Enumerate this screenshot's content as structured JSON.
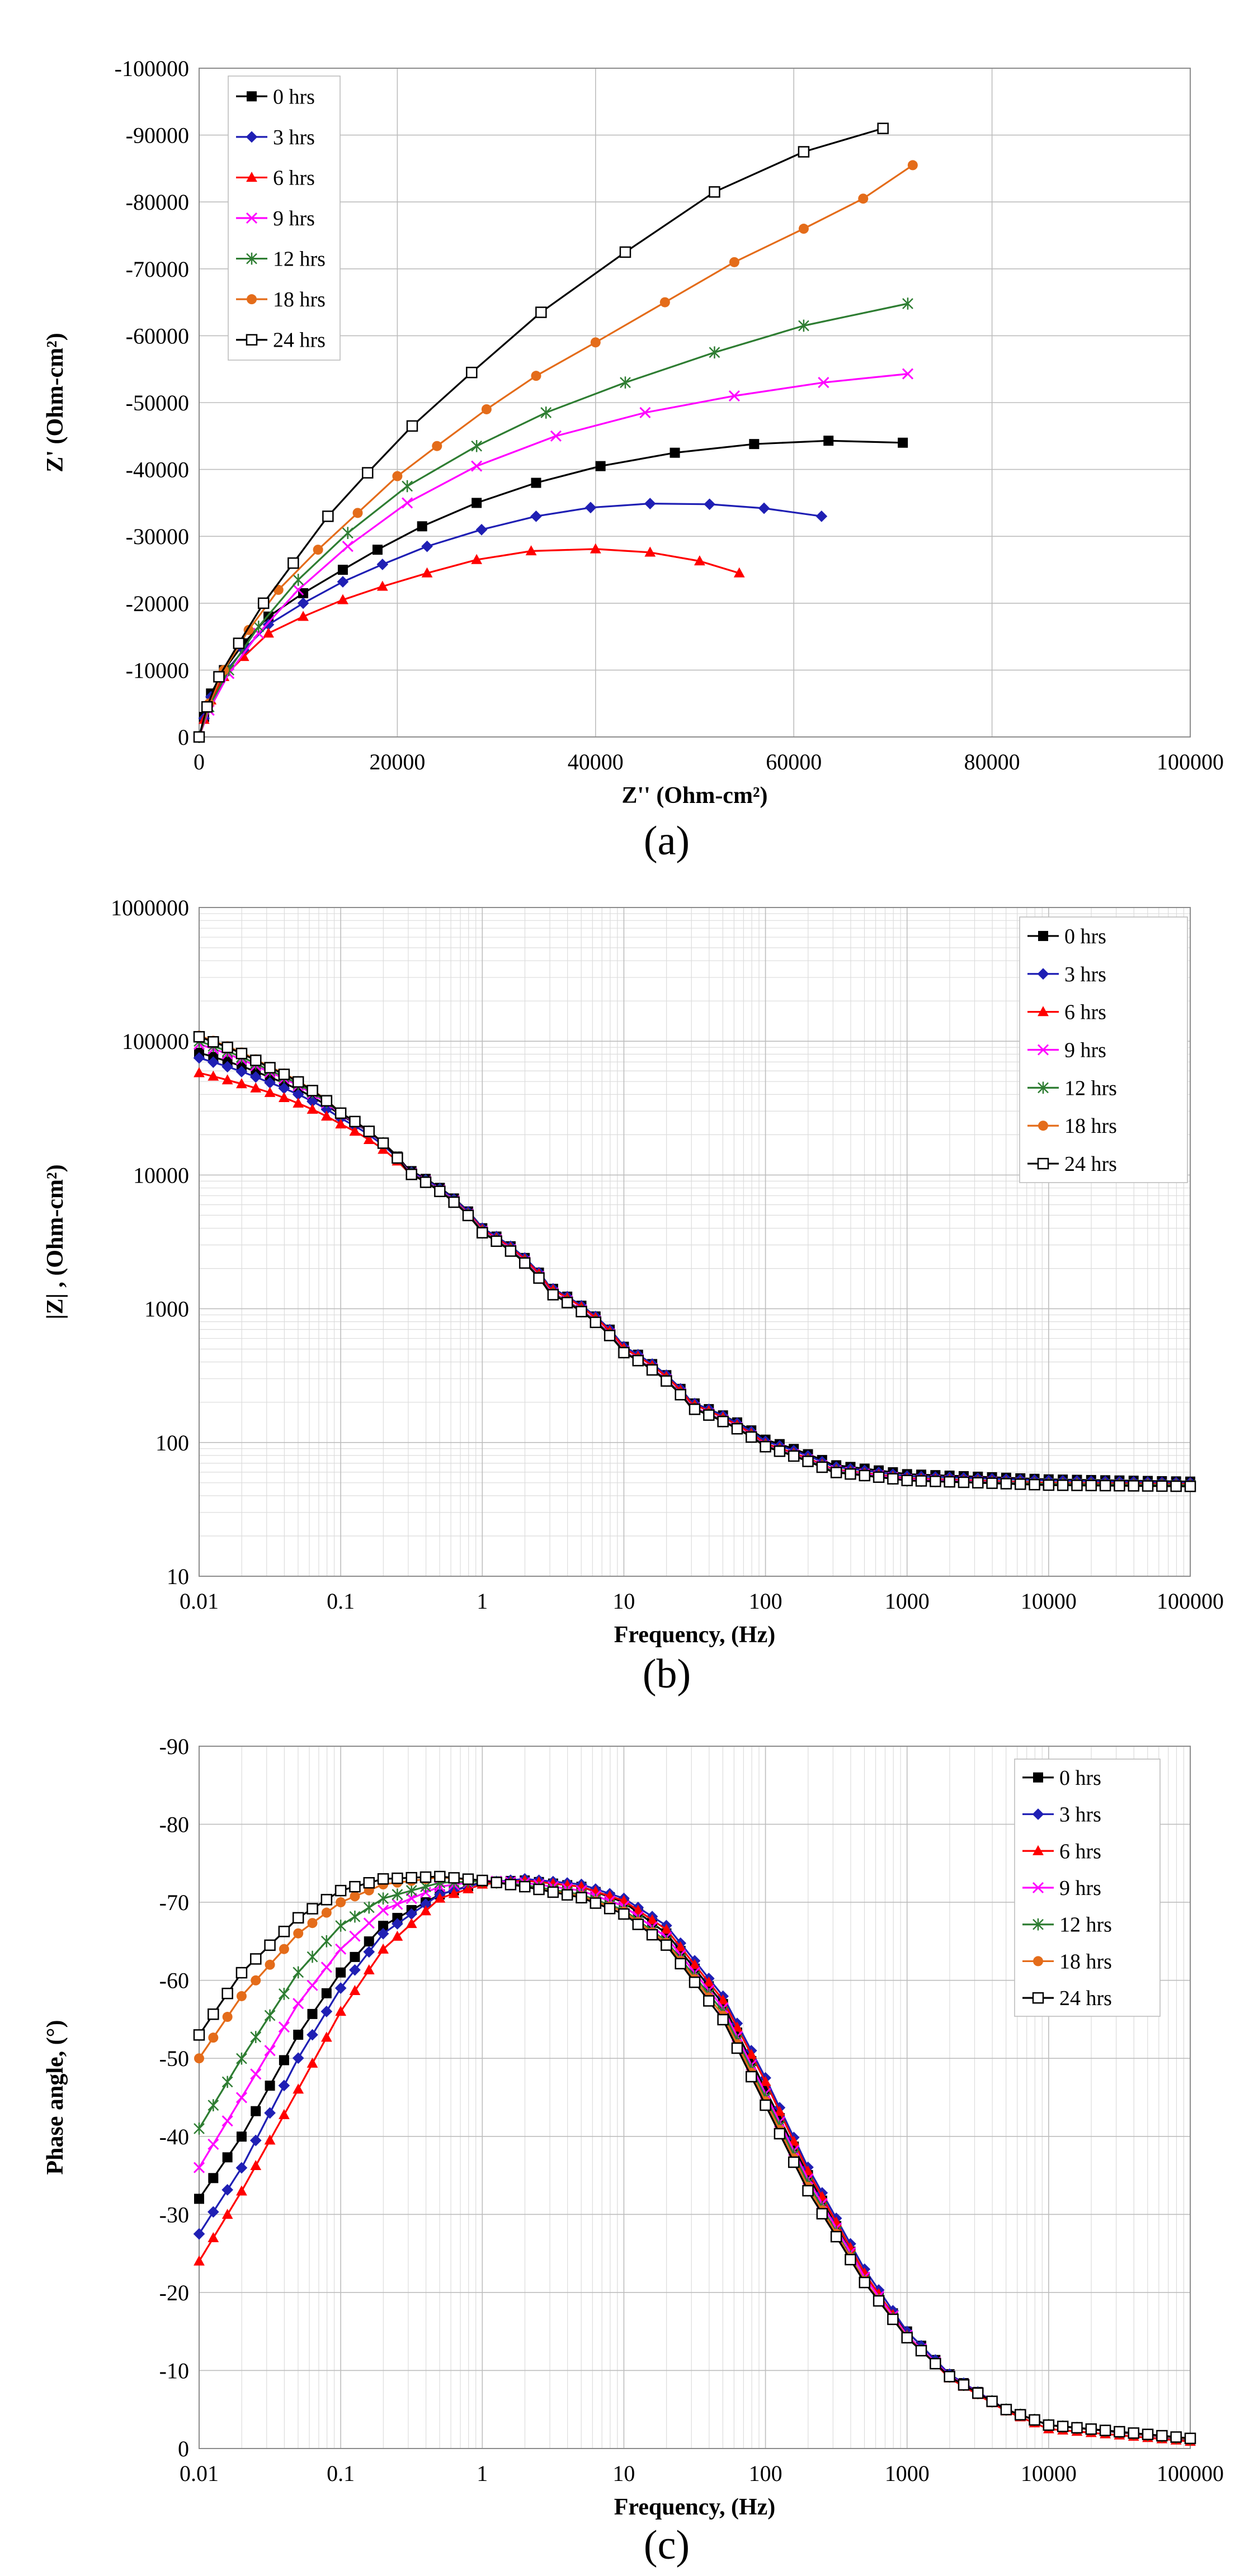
{
  "colors": {
    "0 hrs": "#000000",
    "3 hrs": "#1f1fb4",
    "6 hrs": "#ff0000",
    "9 hrs": "#ff00ff",
    "12 hrs": "#2e7d32",
    "18 hrs": "#e46c1a",
    "24 hrs": "#000000"
  },
  "markers": {
    "0 hrs": "square-filled",
    "3 hrs": "diamond",
    "6 hrs": "triangle",
    "9 hrs": "x-cross",
    "12 hrs": "star",
    "18 hrs": "circle",
    "24 hrs": "square-open"
  },
  "chart_data": [
    {
      "type": "scatter",
      "panel_label": "(a)",
      "title": "",
      "xlabel": "Z'' (Ohm-cm²)",
      "ylabel": "Z' (Ohm-cm²)",
      "xlim": [
        0,
        100000
      ],
      "ylim": [
        0,
        -100000
      ],
      "xticks": [
        "0",
        "20000",
        "40000",
        "60000",
        "80000",
        "100000"
      ],
      "yticks": [
        "0",
        "-10000",
        "-20000",
        "-30000",
        "-40000",
        "-50000",
        "-60000",
        "-70000",
        "-80000",
        "-90000",
        "-100000"
      ],
      "grid": true,
      "legend_position": "top-left",
      "series": [
        {
          "name": "0 hrs",
          "x": [
            0,
            500,
            1200,
            2500,
            4500,
            7000,
            10500,
            14500,
            18000,
            22500,
            28000,
            34000,
            40500,
            48000,
            56000,
            63500,
            71000
          ],
          "y": [
            0,
            -3000,
            -6500,
            -10000,
            -14000,
            -18000,
            -21500,
            -25000,
            -28000,
            -31500,
            -35000,
            -38000,
            -40500,
            -42500,
            -43800,
            -44300,
            -44000
          ]
        },
        {
          "name": "3 hrs",
          "x": [
            0,
            500,
            1200,
            2500,
            4500,
            7000,
            10500,
            14500,
            18500,
            23000,
            28500,
            34000,
            39500,
            45500,
            51500,
            57000,
            62800
          ],
          "y": [
            0,
            -2800,
            -6000,
            -9500,
            -13000,
            -16800,
            -20000,
            -23200,
            -25800,
            -28500,
            -31000,
            -33000,
            -34300,
            -34900,
            -34800,
            -34200,
            -33000
          ]
        },
        {
          "name": "6 hrs",
          "x": [
            0,
            500,
            1200,
            2500,
            4500,
            7000,
            10500,
            14500,
            18500,
            23000,
            28000,
            33500,
            40000,
            45500,
            50500,
            54500
          ],
          "y": [
            0,
            -2600,
            -5500,
            -9000,
            -12000,
            -15500,
            -18000,
            -20500,
            -22500,
            -24500,
            -26500,
            -27800,
            -28100,
            -27600,
            -26300,
            -24500
          ]
        },
        {
          "name": "9 hrs",
          "x": [
            0,
            1000,
            3000,
            6000,
            10000,
            15000,
            21000,
            28000,
            36000,
            45000,
            54000,
            63000,
            71500
          ],
          "y": [
            0,
            -4000,
            -9500,
            -15500,
            -22000,
            -28500,
            -35000,
            -40500,
            -45000,
            -48500,
            -51000,
            -53000,
            -54300
          ]
        },
        {
          "name": "12 hrs",
          "x": [
            0,
            1000,
            3000,
            6000,
            10000,
            15000,
            21000,
            28000,
            35000,
            43000,
            52000,
            61000,
            71500
          ],
          "y": [
            0,
            -4500,
            -10000,
            -16500,
            -23500,
            -30500,
            -37500,
            -43500,
            -48500,
            -53000,
            -57500,
            -61500,
            -64800
          ]
        },
        {
          "name": "18 hrs",
          "x": [
            0,
            1000,
            2500,
            5000,
            8000,
            12000,
            16000,
            20000,
            24000,
            29000,
            34000,
            40000,
            47000,
            54000,
            61000,
            67000,
            72000
          ],
          "y": [
            0,
            -5000,
            -10000,
            -16000,
            -22000,
            -28000,
            -33500,
            -39000,
            -43500,
            -49000,
            -54000,
            -59000,
            -65000,
            -71000,
            -76000,
            -80500,
            -85500
          ]
        },
        {
          "name": "24 hrs",
          "x": [
            0,
            800,
            2000,
            4000,
            6500,
            9500,
            13000,
            17000,
            21500,
            27500,
            34500,
            43000,
            52000,
            61000,
            69000
          ],
          "y": [
            0,
            -4500,
            -9000,
            -14000,
            -20000,
            -26000,
            -33000,
            -39500,
            -46500,
            -54500,
            -63500,
            -72500,
            -81500,
            -87500,
            -91000
          ]
        }
      ]
    },
    {
      "type": "line",
      "panel_label": "(b)",
      "title": "",
      "xlabel": "Frequency, (Hz)",
      "ylabel": "|Z| , (Ohm-cm²)",
      "xscale": "log",
      "yscale": "log",
      "xlim": [
        0.01,
        100000
      ],
      "ylim": [
        10,
        1000000
      ],
      "xticks": [
        "0.01",
        "0.1",
        "1",
        "10",
        "100",
        "1000",
        "10000",
        "100000"
      ],
      "yticks": [
        "10",
        "100",
        "1000",
        "10000",
        "100000",
        "1000000"
      ],
      "grid": true,
      "legend_position": "top-right",
      "series": [
        {
          "name": "0 hrs",
          "x": [
            0.01,
            0.03,
            0.1,
            0.3,
            1,
            3,
            10,
            30,
            100,
            300,
            1000,
            10000,
            100000
          ],
          "y": [
            82000,
            55000,
            28000,
            11000,
            4000,
            1450,
            520,
            200,
            105,
            68,
            58,
            53,
            51
          ]
        },
        {
          "name": "3 hrs",
          "x": [
            0.01,
            0.03,
            0.1,
            0.3,
            1,
            3,
            10,
            30,
            100,
            300,
            1000,
            10000,
            100000
          ],
          "y": [
            75000,
            50000,
            26500,
            10800,
            4000,
            1450,
            520,
            200,
            102,
            66,
            56,
            52,
            50
          ]
        },
        {
          "name": "6 hrs",
          "x": [
            0.01,
            0.03,
            0.1,
            0.3,
            1,
            3,
            10,
            30,
            100,
            300,
            1000,
            10000,
            100000
          ],
          "y": [
            58000,
            42000,
            24000,
            10500,
            3900,
            1420,
            505,
            195,
            98,
            63,
            54,
            50,
            49
          ]
        },
        {
          "name": "9 hrs",
          "x": [
            0.01,
            0.03,
            0.1,
            0.3,
            1,
            3,
            10,
            30,
            100,
            300,
            1000,
            10000,
            100000
          ],
          "y": [
            95000,
            60000,
            28500,
            10600,
            3800,
            1350,
            480,
            185,
            95,
            62,
            53,
            49,
            48
          ]
        },
        {
          "name": "12 hrs",
          "x": [
            0.01,
            0.03,
            0.1,
            0.3,
            1,
            3,
            10,
            30,
            100,
            300,
            1000,
            10000,
            100000
          ],
          "y": [
            100000,
            62000,
            28800,
            10500,
            3750,
            1330,
            475,
            183,
            94,
            61,
            52,
            49,
            48
          ]
        },
        {
          "name": "18 hrs",
          "x": [
            0.01,
            0.03,
            0.1,
            0.3,
            1,
            3,
            10,
            30,
            100,
            300,
            1000,
            10000,
            100000
          ],
          "y": [
            110000,
            66000,
            29000,
            10400,
            3700,
            1310,
            470,
            181,
            93,
            60,
            52,
            48,
            47
          ]
        },
        {
          "name": "24 hrs",
          "x": [
            0.01,
            0.03,
            0.1,
            0.3,
            1,
            3,
            10,
            30,
            100,
            300,
            1000,
            10000,
            100000
          ],
          "y": [
            108000,
            65000,
            29000,
            10400,
            3700,
            1310,
            470,
            181,
            93,
            60,
            52,
            48,
            47
          ]
        }
      ]
    },
    {
      "type": "line",
      "panel_label": "(c)",
      "title": "",
      "xlabel": "Frequency, (Hz)",
      "ylabel": "Phase angle, (°)",
      "xscale": "log",
      "xlim": [
        0.01,
        100000
      ],
      "ylim": [
        0,
        -90
      ],
      "xticks": [
        "0.01",
        "0.1",
        "1",
        "10",
        "100",
        "1000",
        "10000",
        "100000"
      ],
      "yticks": [
        "0",
        "-10",
        "-20",
        "-30",
        "-40",
        "-50",
        "-60",
        "-70",
        "-80",
        "-90"
      ],
      "grid": true,
      "legend_position": "top-right",
      "series": [
        {
          "name": "0 hrs",
          "x": [
            0.01,
            0.02,
            0.05,
            0.1,
            0.2,
            0.5,
            1,
            2,
            5,
            10,
            20,
            50,
            100,
            200,
            500,
            1000,
            2000,
            5000,
            10000,
            100000
          ],
          "y": [
            -32,
            -40,
            -53,
            -61,
            -67,
            -71,
            -72.6,
            -72.8,
            -72,
            -70,
            -66,
            -57,
            -46,
            -35,
            -22,
            -15,
            -9.5,
            -5,
            -3,
            -1.2
          ]
        },
        {
          "name": "3 hrs",
          "x": [
            0.01,
            0.02,
            0.05,
            0.1,
            0.2,
            0.5,
            1,
            2,
            5,
            10,
            20,
            50,
            100,
            200,
            500,
            1000,
            2000,
            5000,
            10000,
            100000
          ],
          "y": [
            -27.5,
            -36,
            -50,
            -59,
            -66,
            -71,
            -72.5,
            -73,
            -72.3,
            -70.5,
            -67,
            -58,
            -47.5,
            -36,
            -23,
            -15,
            -9.5,
            -5,
            -3,
            -1.1
          ]
        },
        {
          "name": "6 hrs",
          "x": [
            0.01,
            0.02,
            0.05,
            0.1,
            0.2,
            0.5,
            1,
            2,
            5,
            10,
            20,
            50,
            100,
            200,
            500,
            1000,
            2000,
            5000,
            10000,
            100000
          ],
          "y": [
            -24,
            -33,
            -46,
            -56,
            -64,
            -70.5,
            -72.3,
            -72.8,
            -72,
            -70.2,
            -66.5,
            -57.5,
            -47,
            -35.5,
            -22.5,
            -14.5,
            -9,
            -4.8,
            -2.5,
            -0.9
          ]
        },
        {
          "name": "9 hrs",
          "x": [
            0.01,
            0.02,
            0.05,
            0.1,
            0.2,
            0.5,
            1,
            2,
            5,
            10,
            20,
            50,
            100,
            200,
            500,
            1000,
            2000,
            5000,
            10000,
            100000
          ],
          "y": [
            -36,
            -45,
            -57,
            -64,
            -69,
            -72,
            -72.8,
            -72.5,
            -71.5,
            -69.5,
            -65.5,
            -56.5,
            -45.5,
            -34.5,
            -22,
            -14.5,
            -9.3,
            -5,
            -3,
            -1.2
          ]
        },
        {
          "name": "12 hrs",
          "x": [
            0.01,
            0.02,
            0.05,
            0.1,
            0.2,
            0.5,
            1,
            2,
            5,
            10,
            20,
            50,
            100,
            200,
            500,
            1000,
            2000,
            5000,
            10000,
            100000
          ],
          "y": [
            -41,
            -50,
            -61,
            -67,
            -70.5,
            -72.5,
            -72.7,
            -72.2,
            -71,
            -69,
            -65,
            -56,
            -45,
            -34,
            -21.5,
            -14.3,
            -9.2,
            -5,
            -3,
            -1.2
          ]
        },
        {
          "name": "18 hrs",
          "x": [
            0.01,
            0.02,
            0.05,
            0.1,
            0.2,
            0.5,
            1,
            2,
            5,
            10,
            20,
            50,
            100,
            200,
            500,
            1000,
            2000,
            5000,
            10000,
            100000
          ],
          "y": [
            -50,
            -58,
            -66,
            -70,
            -72.3,
            -73.2,
            -72.8,
            -72,
            -70.8,
            -68.8,
            -64.8,
            -55.5,
            -44.5,
            -33.5,
            -21.5,
            -14.3,
            -9.2,
            -5,
            -3,
            -1.2
          ]
        },
        {
          "name": "24 hrs",
          "x": [
            0.01,
            0.02,
            0.05,
            0.1,
            0.2,
            0.5,
            1,
            2,
            5,
            10,
            20,
            50,
            100,
            200,
            500,
            1000,
            2000,
            5000,
            10000,
            100000
          ],
          "y": [
            -53,
            -61,
            -68,
            -71.5,
            -73,
            -73.3,
            -72.8,
            -72,
            -70.6,
            -68.5,
            -64.5,
            -55,
            -44,
            -33,
            -21.3,
            -14.2,
            -9.2,
            -5,
            -3,
            -1.3
          ]
        }
      ]
    }
  ]
}
